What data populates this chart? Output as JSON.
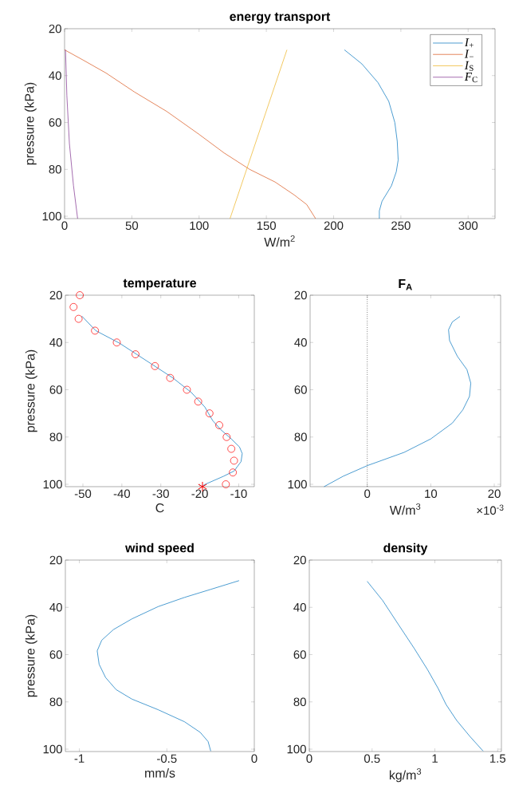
{
  "chart_data": [
    {
      "type": "line",
      "title": "energy transport",
      "xlabel": "W/m$^{2}$",
      "ylabel": "pressure (kPa)",
      "xlim": [
        0,
        320
      ],
      "xticks": [
        0,
        50,
        100,
        150,
        200,
        250,
        300
      ],
      "ylim": [
        101,
        20
      ],
      "yticks": [
        20,
        40,
        60,
        80,
        100
      ],
      "legend": "top right",
      "series": [
        {
          "name": "*I*$_{+}$",
          "color": "#0072bd",
          "x": [
            208,
            221,
            233,
            241,
            245.5,
            247.3,
            248,
            246.6,
            243,
            236,
            234,
            234
          ],
          "values": [
            29,
            35,
            43,
            51,
            60,
            68,
            76,
            81,
            87,
            93.6,
            97.7,
            101
          ]
        },
        {
          "name": "*I*$_{−}$",
          "color": "#d95319",
          "x": [
            0,
            14.2,
            30.8,
            52,
            76,
            99.6,
            118.6,
            137.6,
            156.5,
            170.7,
            180,
            186.6
          ],
          "values": [
            29,
            33.5,
            38.9,
            47,
            55.3,
            64.9,
            73,
            80,
            85.4,
            90.9,
            95,
            101
          ]
        },
        {
          "name": "*I*$_{S}$",
          "color": "#edb120",
          "x": [
            165.3,
            144.2,
            123
          ],
          "values": [
            29,
            64.9,
            101
          ]
        },
        {
          "name": "*F*$_{C}$",
          "color": "#7e2f8e",
          "x": [
            0.7,
            1.7,
            3.6,
            6.6,
            9.7
          ],
          "values": [
            29,
            48.5,
            69,
            86.8,
            101
          ]
        }
      ]
    },
    {
      "type": "line",
      "title": "temperature",
      "xlabel": "C",
      "ylabel": "pressure (kPa)",
      "xlim": [
        -54.5,
        -6
      ],
      "xticks": [
        -50,
        -40,
        -30,
        -20,
        -10
      ],
      "ylim": [
        101,
        20
      ],
      "yticks": [
        20,
        40,
        60,
        80,
        100
      ],
      "series": [
        {
          "color": "#0072bd",
          "x": [
            -50.3,
            -46.7,
            -40.6,
            -33.8,
            -26.9,
            -22.2,
            -18.7,
            -16.7,
            -14.6,
            -11.9,
            -9.8,
            -9.1,
            -9.4,
            -11.2,
            -13.9,
            -18.6,
            -19.6
          ],
          "values": [
            28.8,
            35,
            40.3,
            47.6,
            55,
            61.1,
            67.3,
            73,
            76.9,
            80.8,
            84.2,
            87,
            90.4,
            94.4,
            96.6,
            100,
            101
          ]
        },
        {
          "type": "scatter",
          "marker": "circle",
          "color": "#ff0000",
          "x": [
            -50.8,
            -52.4,
            -51.1,
            -46.9,
            -41.3,
            -36.5,
            -31.5,
            -27.6,
            -23.3,
            -20.4,
            -17.5,
            -15.0,
            -13.1,
            -11.9,
            -11.2,
            -11.5,
            -13.3
          ],
          "values": [
            20,
            25,
            30,
            35,
            40,
            45,
            50,
            55,
            60,
            65,
            70,
            75,
            80,
            85,
            90,
            95,
            100
          ]
        },
        {
          "type": "scatter",
          "marker": "cross",
          "color": "#ff0000",
          "x": [
            -19.3
          ],
          "values": [
            101
          ]
        }
      ]
    },
    {
      "type": "line",
      "title": "F$_{A}$",
      "xlabel": "W/m$^{3}$",
      "xlim": [
        -9,
        21
      ],
      "xticks": [
        0,
        10,
        20
      ],
      "ylim": [
        101,
        20
      ],
      "yticks": [
        20,
        40,
        60,
        80,
        100
      ],
      "annotations": [
        "×10$^{-3}$"
      ],
      "ref_lines": [
        {
          "axis": "x",
          "value": 0,
          "color": "#000000",
          "line_style": "dotted"
        }
      ],
      "series": [
        {
          "color": "#0072bd",
          "x": [
            14.6,
            13.4,
            12.8,
            12.96,
            14.2,
            15.7,
            16.3,
            16.1,
            15.05,
            13.4,
            10,
            5.8,
            0,
            -3.8,
            -6.8
          ],
          "values": [
            29,
            31.3,
            34.6,
            39.2,
            45.9,
            51.5,
            57.2,
            62.8,
            68.5,
            74.1,
            80.8,
            86.5,
            92.1,
            96.6,
            101
          ]
        }
      ]
    },
    {
      "type": "line",
      "title": "wind speed",
      "xlabel": "mm/s",
      "ylabel": "pressure (kPa)",
      "xlim": [
        -1.08,
        0
      ],
      "xticks": [
        -1,
        -0.5,
        0
      ],
      "ylim": [
        101,
        20
      ],
      "yticks": [
        20,
        40,
        60,
        80,
        100
      ],
      "series": [
        {
          "color": "#0072bd",
          "x": [
            -0.087,
            -0.249,
            -0.399,
            -0.55,
            -0.7,
            -0.805,
            -0.872,
            -0.898,
            -0.887,
            -0.85,
            -0.79,
            -0.7,
            -0.55,
            -0.399,
            -0.309,
            -0.264,
            -0.249
          ],
          "values": [
            28.7,
            32.4,
            35.8,
            39.7,
            44.9,
            49.4,
            53.9,
            58.4,
            64.1,
            69.7,
            74.8,
            78.8,
            83.3,
            88.4,
            92.9,
            96.8,
            100.8
          ]
        }
      ]
    },
    {
      "type": "line",
      "title": "density",
      "xlabel": "kg/m$^{3}$",
      "xlim": [
        0,
        1.53
      ],
      "xticks": [
        0,
        0.5,
        1,
        1.5
      ],
      "ylim": [
        101,
        20
      ],
      "yticks": [
        20,
        40,
        60,
        80,
        100
      ],
      "series": [
        {
          "color": "#0072bd",
          "x": [
            0.461,
            0.584,
            0.71,
            0.836,
            0.942,
            1.026,
            1.089,
            1.173,
            1.279,
            1.384
          ],
          "values": [
            29,
            37.1,
            47.3,
            57.4,
            66.4,
            74.3,
            81.1,
            87.8,
            94.6,
            100.8
          ]
        }
      ]
    }
  ]
}
